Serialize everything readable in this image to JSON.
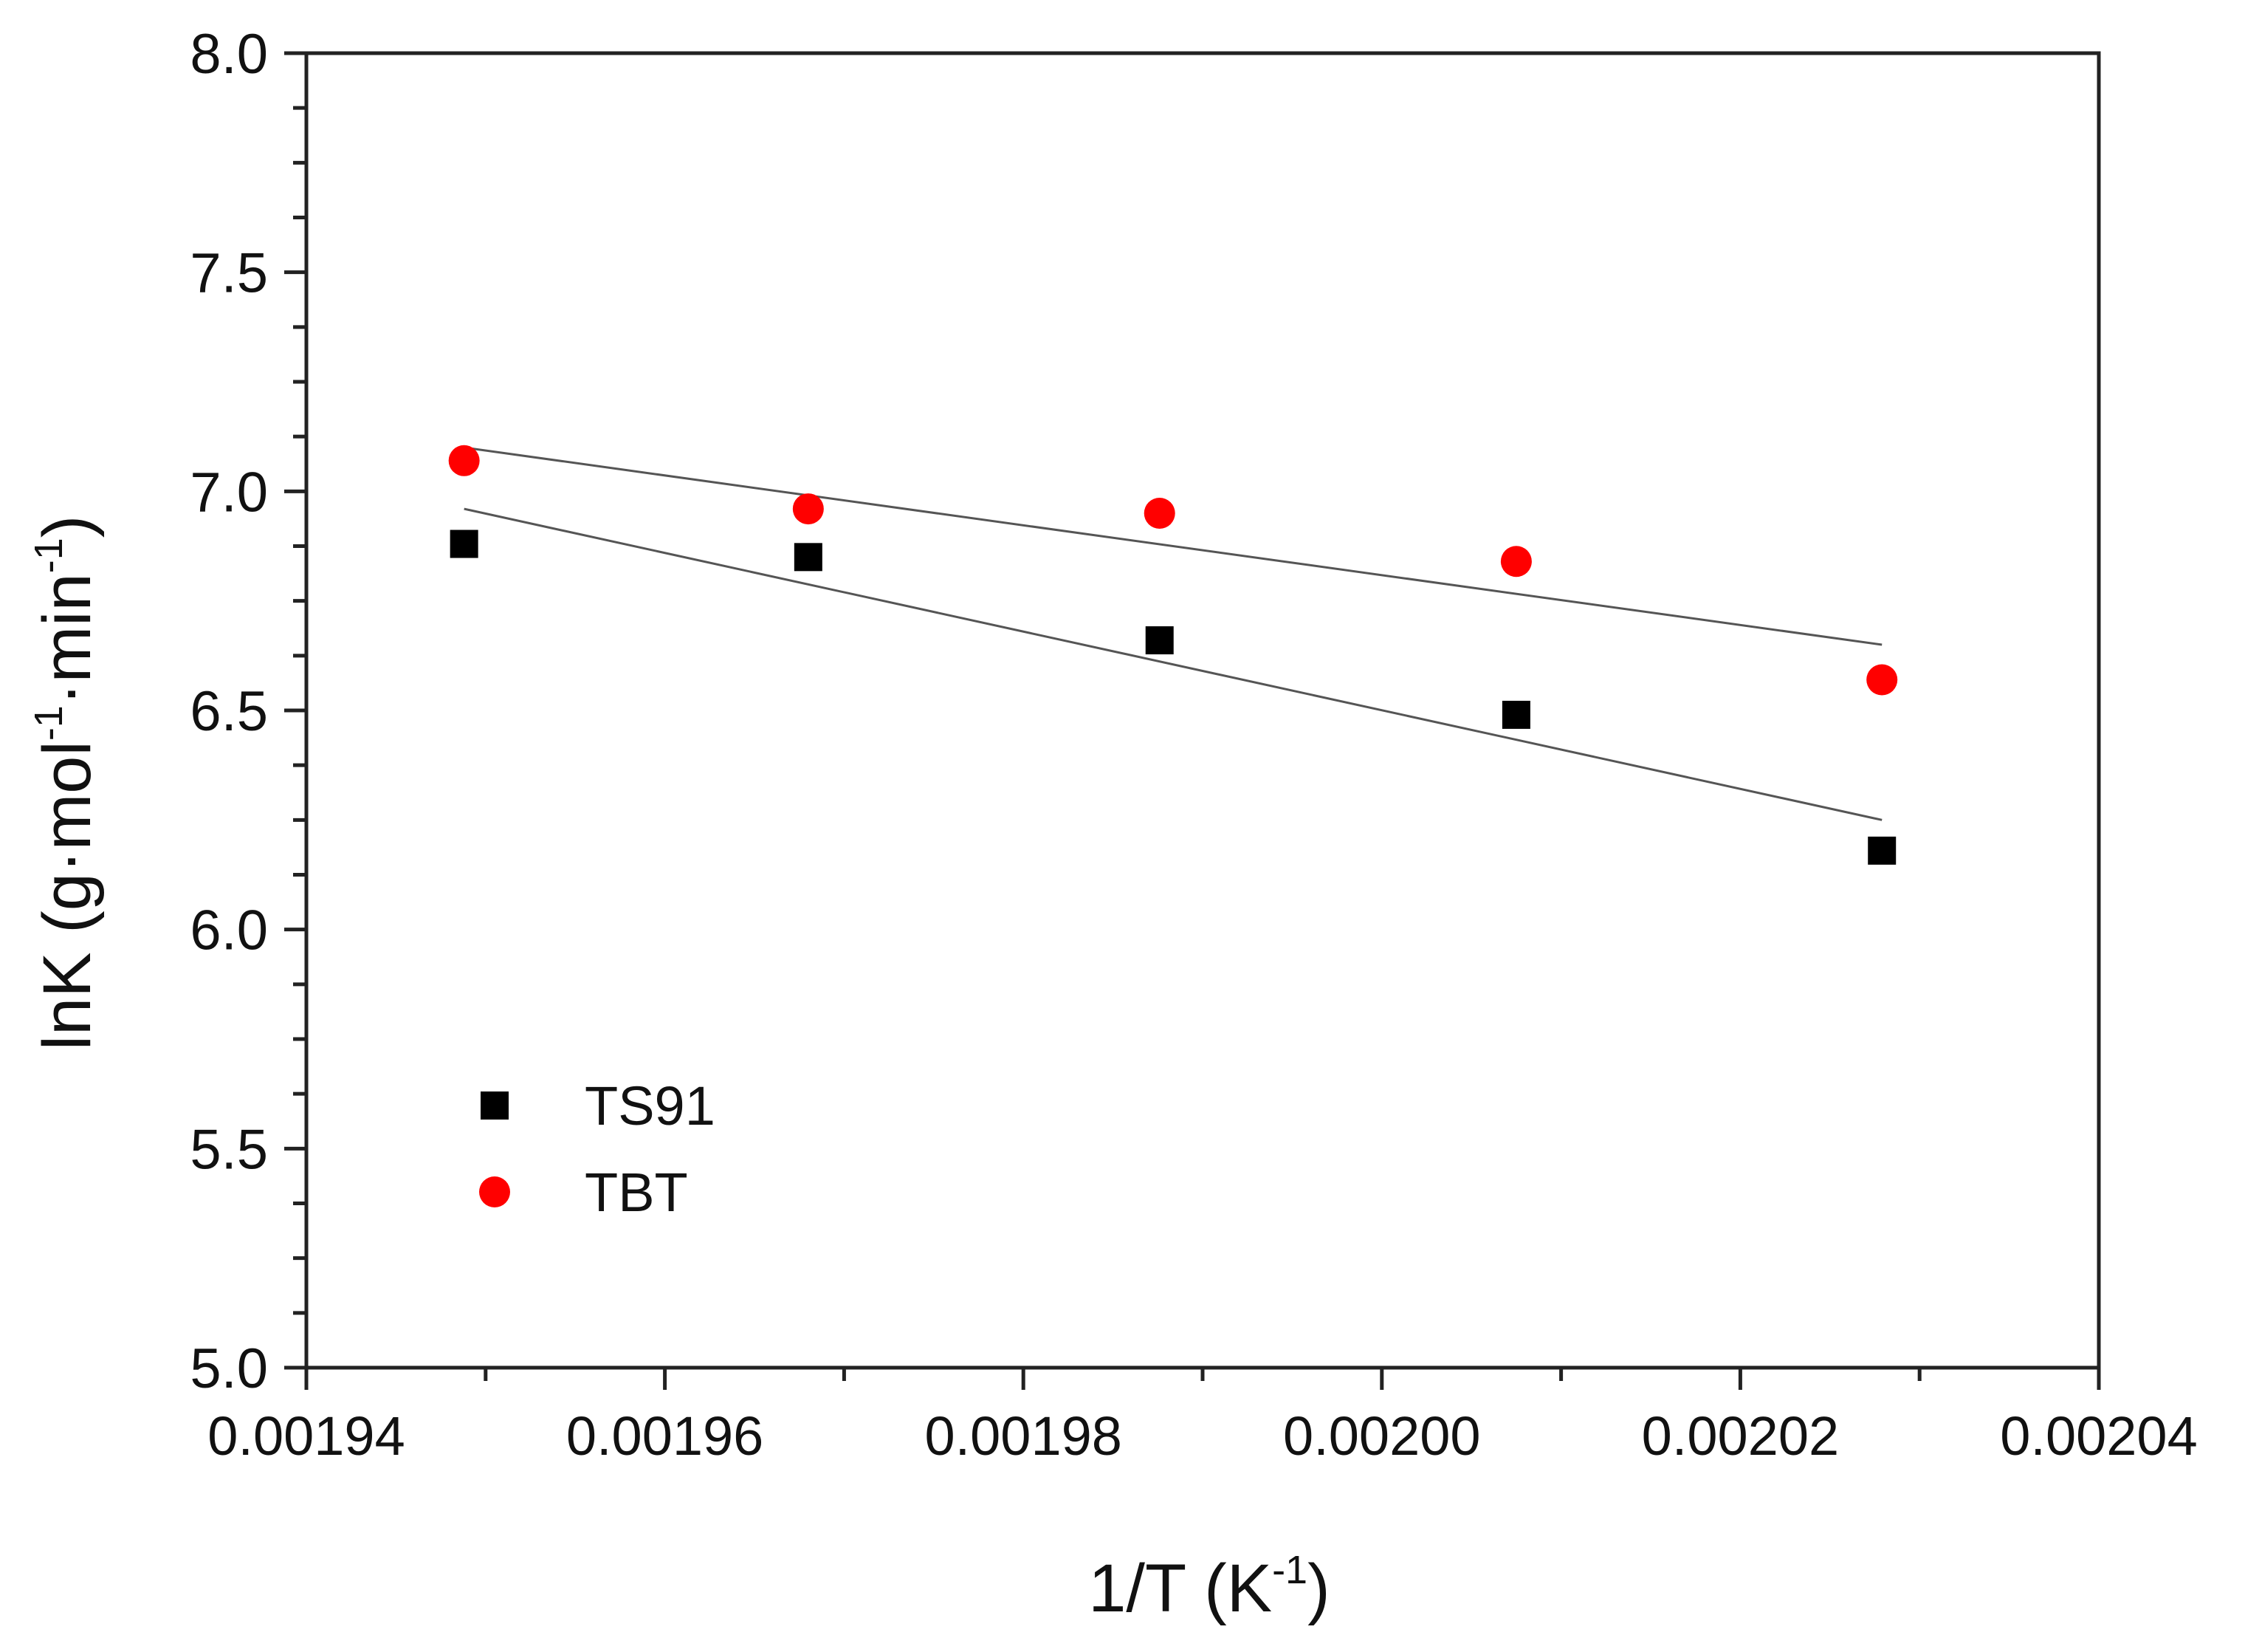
{
  "chart_data": {
    "type": "scatter",
    "title": "",
    "xlabel": "1/T (K",
    "xlabel_sup": "-1",
    "xlabel_close": ")",
    "ylabel": "lnK (g·mol",
    "ylabel_sup1": "-1",
    "ylabel_mid": "·min",
    "ylabel_sup2": "-1",
    "ylabel_close": ")",
    "xlim": [
      0.00194,
      0.00204
    ],
    "ylim": [
      5.0,
      8.0
    ],
    "x_ticks": [
      0.00194,
      0.00196,
      0.00198,
      0.002,
      0.00202,
      0.00204
    ],
    "x_tick_labels": [
      "0.00194",
      "0.00196",
      "0.00198",
      "0.00200",
      "0.00202",
      "0.00204"
    ],
    "y_ticks": [
      5.0,
      5.5,
      6.0,
      6.5,
      7.0,
      7.5,
      8.0
    ],
    "y_tick_labels": [
      "5.0",
      "5.5",
      "6.0",
      "6.5",
      "7.0",
      "7.5",
      "8.0"
    ],
    "grid": false,
    "legend_position": "lower-left",
    "series": [
      {
        "name": "TS91",
        "marker": "square",
        "color": "#000000",
        "x": [
          0.0019488,
          0.001968,
          0.0019876,
          0.0020075,
          0.0020279
        ],
        "y": [
          6.88,
          6.85,
          6.66,
          6.49,
          6.18
        ],
        "fit": {
          "x": [
            0.0019488,
            0.0020279
          ],
          "y": [
            6.96,
            6.25
          ],
          "color": "#555555"
        }
      },
      {
        "name": "TBT",
        "marker": "circle",
        "color": "#ff0000",
        "x": [
          0.0019488,
          0.001968,
          0.0019876,
          0.0020075,
          0.0020279
        ],
        "y": [
          7.07,
          6.96,
          6.95,
          6.84,
          6.57
        ],
        "fit": {
          "x": [
            0.0019488,
            0.0020279
          ],
          "y": [
            7.1,
            6.65
          ],
          "color": "#555555"
        }
      }
    ]
  }
}
